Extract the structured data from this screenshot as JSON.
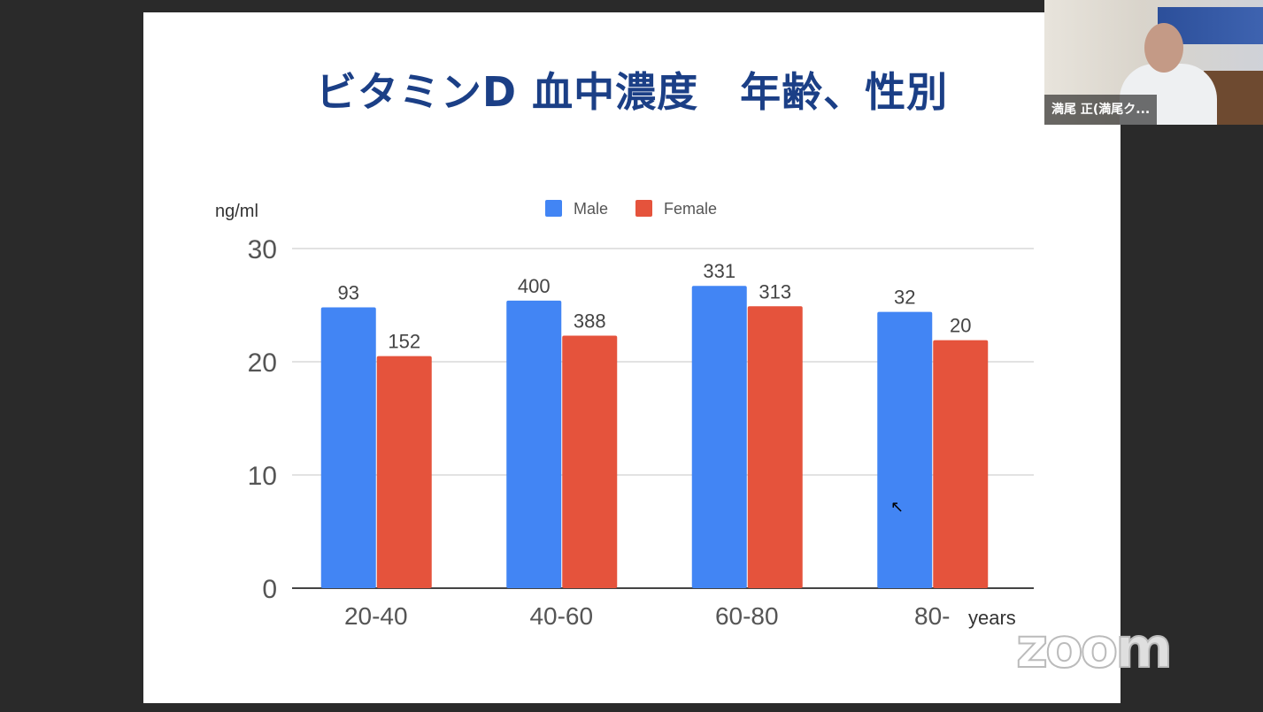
{
  "slide": {
    "title": "ビタミンD 血中濃度　年齢、性別"
  },
  "video": {
    "participant_name": "満尾 正(満尾ク..."
  },
  "watermark": "zoom",
  "chart_data": {
    "type": "bar",
    "title": "",
    "ylabel": "ng/ml",
    "xlabel": "years",
    "categories": [
      "20-40",
      "40-60",
      "60-80",
      "80-"
    ],
    "ylim": [
      0,
      30
    ],
    "yticks": [
      0,
      10,
      20,
      30
    ],
    "grid": true,
    "legend_position": "top",
    "series": [
      {
        "name": "Male",
        "color": "#4285f4",
        "values": [
          24.8,
          25.4,
          26.7,
          24.4
        ],
        "labels": [
          "93",
          "400",
          "331",
          "32"
        ]
      },
      {
        "name": "Female",
        "color": "#e5533c",
        "values": [
          20.5,
          22.3,
          24.9,
          21.9
        ],
        "labels": [
          "152",
          "388",
          "313",
          "20"
        ]
      }
    ]
  }
}
